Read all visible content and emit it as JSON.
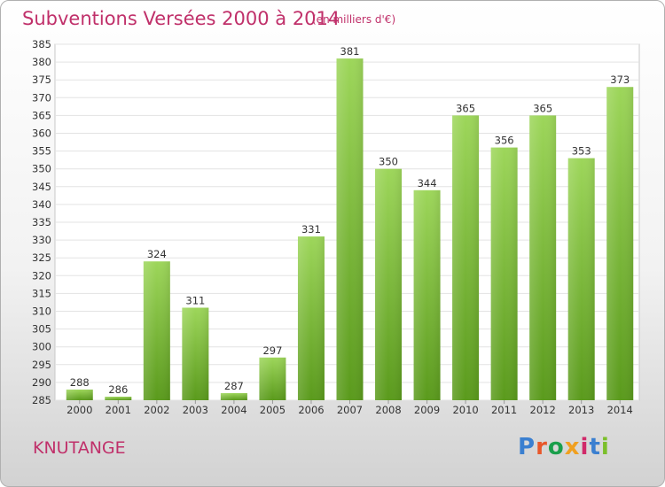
{
  "header": {
    "title": "Subventions Versées 2000 à 2014",
    "subtitle": "(en milliers d'€)"
  },
  "footer": {
    "commune": "KNUTANGE",
    "logo_text": "Proxiti",
    "logo_colors": [
      "#3a7fd0",
      "#e8572a",
      "#1a9f4c",
      "#f0a020",
      "#d02a6a",
      "#3a7fd0",
      "#7bbf2a"
    ]
  },
  "chart_data": {
    "type": "bar",
    "categories": [
      "2000",
      "2001",
      "2002",
      "2003",
      "2004",
      "2005",
      "2006",
      "2007",
      "2008",
      "2009",
      "2010",
      "2011",
      "2012",
      "2013",
      "2014"
    ],
    "values": [
      288,
      286,
      324,
      311,
      287,
      297,
      331,
      381,
      350,
      344,
      365,
      356,
      365,
      353,
      373
    ],
    "title": "Subventions Versées 2000 à 2014",
    "subtitle": "(en milliers d'€)",
    "ylim": [
      285,
      385
    ],
    "yticks": [
      285,
      290,
      295,
      300,
      305,
      310,
      315,
      320,
      325,
      330,
      335,
      340,
      345,
      350,
      355,
      360,
      365,
      370,
      375,
      380,
      385
    ],
    "grid": true,
    "bar_color": "#7cc040",
    "data_labels": true
  }
}
